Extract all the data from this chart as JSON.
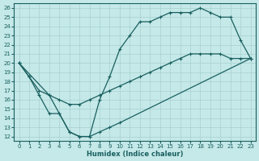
{
  "xlabel": "Humidex (Indice chaleur)",
  "xlim": [
    -0.5,
    23.5
  ],
  "ylim": [
    11.5,
    26.5
  ],
  "yticks": [
    12,
    13,
    14,
    15,
    16,
    17,
    18,
    19,
    20,
    21,
    22,
    23,
    24,
    25,
    26
  ],
  "xticks": [
    0,
    1,
    2,
    3,
    4,
    5,
    6,
    7,
    8,
    9,
    10,
    11,
    12,
    13,
    14,
    15,
    16,
    17,
    18,
    19,
    20,
    21,
    22,
    23
  ],
  "bg_color": "#c5e8e8",
  "grid_color": "#a8d0d0",
  "line_color": "#1a6060",
  "line1_x": [
    0,
    1,
    2,
    3,
    4,
    5,
    6,
    7,
    8,
    9,
    10,
    11,
    12,
    13,
    14,
    15,
    16,
    17,
    18,
    19,
    20,
    21,
    22,
    23
  ],
  "line1_y": [
    20,
    18.5,
    17,
    16.5,
    16,
    15.5,
    15.5,
    16,
    16.5,
    17,
    17.5,
    18,
    18.5,
    19,
    19.5,
    20,
    20.5,
    21,
    21,
    21,
    21,
    20.5,
    20.5,
    20.5
  ],
  "line2_x": [
    0,
    3,
    4,
    5,
    6,
    7,
    8,
    9,
    10,
    11,
    12,
    13,
    14,
    15,
    16,
    17,
    18,
    19,
    20,
    21,
    22,
    23
  ],
  "line2_y": [
    20,
    16.5,
    14.5,
    12.5,
    12,
    12,
    16,
    18.5,
    21.5,
    23,
    24.5,
    24.5,
    25,
    25.5,
    25.5,
    25.5,
    26,
    25.5,
    25,
    25,
    22.5,
    20.5
  ],
  "line3_x": [
    0,
    1,
    2,
    3,
    4,
    5,
    6,
    7,
    8,
    9,
    10,
    23
  ],
  "line3_y": [
    20,
    18.5,
    16.5,
    14.5,
    14.5,
    12.5,
    12,
    12,
    12.5,
    13,
    13.5,
    20.5
  ]
}
